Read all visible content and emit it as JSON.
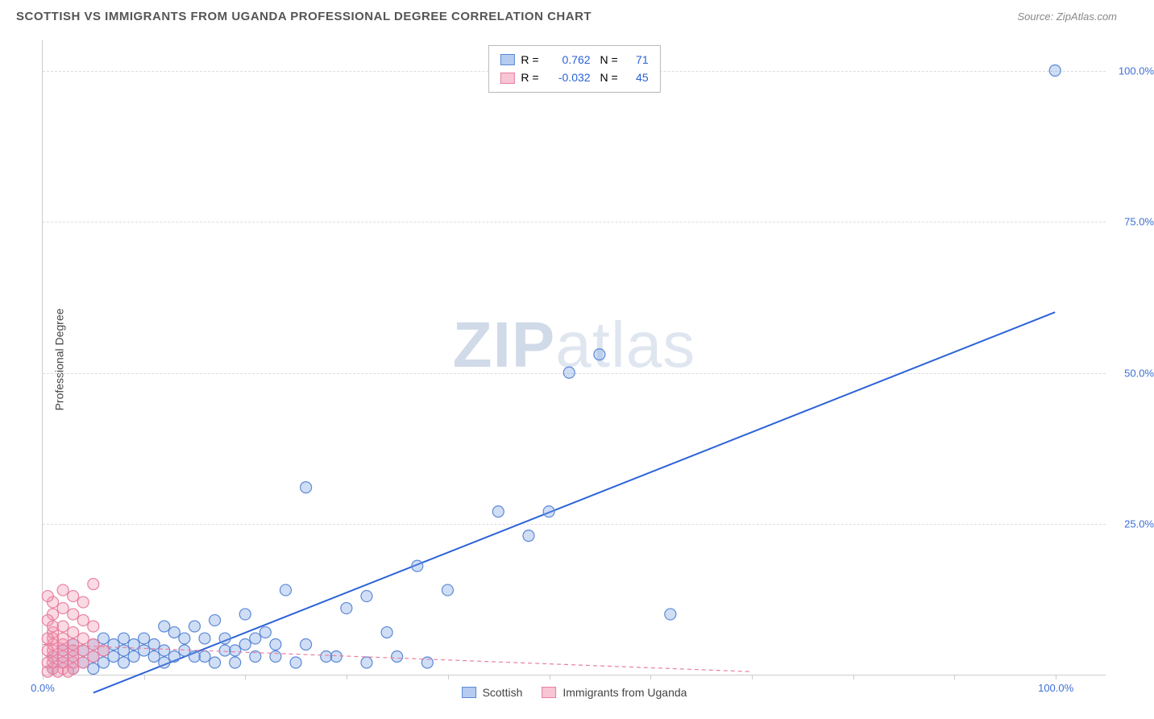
{
  "header": {
    "title": "SCOTTISH VS IMMIGRANTS FROM UGANDA PROFESSIONAL DEGREE CORRELATION CHART",
    "source": "Source: ZipAtlas.com"
  },
  "chart": {
    "type": "scatter",
    "ylabel": "Professional Degree",
    "xlim": [
      0,
      105
    ],
    "ylim": [
      0,
      105
    ],
    "background_color": "#ffffff",
    "grid_color": "#dddddd",
    "axis_color": "#cccccc",
    "ytick_values": [
      25,
      50,
      75,
      100
    ],
    "ytick_labels": [
      "25.0%",
      "50.0%",
      "75.0%",
      "100.0%"
    ],
    "xtick_values": [
      0,
      10,
      20,
      30,
      40,
      50,
      60,
      70,
      80,
      90,
      100
    ],
    "xtick_label_min": "0.0%",
    "xtick_label_max": "100.0%",
    "tick_label_color": "#3b6fd6",
    "marker_radius": 7,
    "marker_stroke_width": 1.2,
    "watermark_text_bold": "ZIP",
    "watermark_text_rest": "atlas",
    "series": [
      {
        "name": "Scottish",
        "fill": "rgba(120,160,225,0.35)",
        "stroke": "#5b89d6",
        "regression": {
          "x1": 5,
          "y1": -3,
          "x2": 100,
          "y2": 60,
          "stroke": "#2a62d8",
          "width": 2,
          "dash": "none"
        },
        "r": "0.762",
        "n": "71",
        "points": [
          [
            100,
            100
          ],
          [
            55,
            53
          ],
          [
            52,
            50
          ],
          [
            50,
            27
          ],
          [
            62,
            10
          ],
          [
            45,
            27
          ],
          [
            48,
            23
          ],
          [
            40,
            14
          ],
          [
            37,
            18
          ],
          [
            34,
            7
          ],
          [
            32,
            13
          ],
          [
            30,
            11
          ],
          [
            28,
            3
          ],
          [
            26,
            31
          ],
          [
            25,
            2
          ],
          [
            24,
            14
          ],
          [
            23,
            5
          ],
          [
            22,
            7
          ],
          [
            21,
            3
          ],
          [
            20,
            10
          ],
          [
            19,
            2
          ],
          [
            18,
            4
          ],
          [
            17,
            9
          ],
          [
            16,
            6
          ],
          [
            15,
            3
          ],
          [
            14,
            6
          ],
          [
            13,
            7
          ],
          [
            12,
            4
          ],
          [
            12,
            2
          ],
          [
            11,
            5
          ],
          [
            11,
            3
          ],
          [
            10,
            6
          ],
          [
            10,
            4
          ],
          [
            9,
            5
          ],
          [
            9,
            3
          ],
          [
            8,
            6
          ],
          [
            8,
            4
          ],
          [
            8,
            2
          ],
          [
            7,
            5
          ],
          [
            7,
            3
          ],
          [
            6,
            6
          ],
          [
            6,
            4
          ],
          [
            6,
            2
          ],
          [
            5,
            5
          ],
          [
            5,
            3
          ],
          [
            5,
            1
          ],
          [
            4,
            4
          ],
          [
            4,
            2
          ],
          [
            3,
            5
          ],
          [
            3,
            3
          ],
          [
            3,
            1
          ],
          [
            2,
            4
          ],
          [
            2,
            2
          ],
          [
            1,
            3
          ],
          [
            1,
            1
          ],
          [
            20,
            5
          ],
          [
            23,
            3
          ],
          [
            26,
            5
          ],
          [
            29,
            3
          ],
          [
            32,
            2
          ],
          [
            35,
            3
          ],
          [
            38,
            2
          ],
          [
            15,
            8
          ],
          [
            17,
            2
          ],
          [
            14,
            4
          ],
          [
            16,
            3
          ],
          [
            18,
            6
          ],
          [
            19,
            4
          ],
          [
            21,
            6
          ],
          [
            12,
            8
          ],
          [
            13,
            3
          ]
        ]
      },
      {
        "name": "Immigrants from Uganda",
        "fill": "rgba(240,150,175,0.35)",
        "stroke": "#e87fa0",
        "regression": {
          "x1": 0,
          "y1": 5,
          "x2": 70,
          "y2": 0.5,
          "stroke": "#e87fa0",
          "width": 1.2,
          "dash": "5,4"
        },
        "r": "-0.032",
        "n": "45",
        "points": [
          [
            1,
            1
          ],
          [
            1,
            2
          ],
          [
            1,
            3
          ],
          [
            1,
            4
          ],
          [
            1,
            5
          ],
          [
            1,
            6
          ],
          [
            1,
            7
          ],
          [
            1,
            8
          ],
          [
            1,
            10
          ],
          [
            1,
            12
          ],
          [
            2,
            1
          ],
          [
            2,
            2
          ],
          [
            2,
            3
          ],
          [
            2,
            4
          ],
          [
            2,
            5
          ],
          [
            2,
            6
          ],
          [
            2,
            8
          ],
          [
            2,
            11
          ],
          [
            2,
            14
          ],
          [
            3,
            1
          ],
          [
            3,
            2
          ],
          [
            3,
            3
          ],
          [
            3,
            4
          ],
          [
            3,
            5
          ],
          [
            3,
            7
          ],
          [
            3,
            10
          ],
          [
            3,
            13
          ],
          [
            4,
            2
          ],
          [
            4,
            4
          ],
          [
            4,
            6
          ],
          [
            4,
            9
          ],
          [
            4,
            12
          ],
          [
            5,
            3
          ],
          [
            5,
            5
          ],
          [
            5,
            8
          ],
          [
            5,
            15
          ],
          [
            0.5,
            2
          ],
          [
            0.5,
            4
          ],
          [
            0.5,
            6
          ],
          [
            0.5,
            9
          ],
          [
            0.5,
            13
          ],
          [
            0.5,
            0.5
          ],
          [
            1.5,
            0.5
          ],
          [
            2.5,
            0.5
          ],
          [
            6,
            4
          ]
        ]
      }
    ],
    "legend_bottom": [
      {
        "label": "Scottish",
        "fill": "rgba(120,160,225,0.55)",
        "stroke": "#5b89d6"
      },
      {
        "label": "Immigrants from Uganda",
        "fill": "rgba(240,150,175,0.55)",
        "stroke": "#e87fa0"
      }
    ]
  }
}
